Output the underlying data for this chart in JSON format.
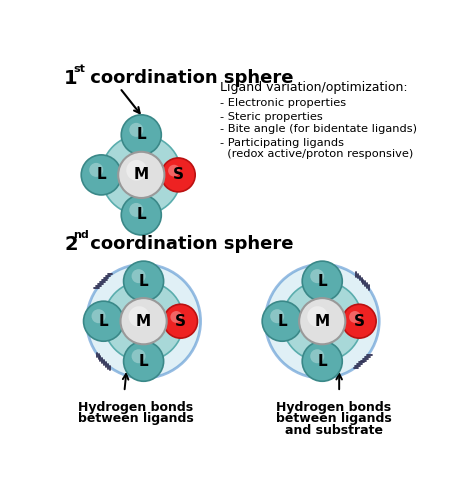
{
  "bg_color": "#ffffff",
  "teal_color": "#5aadad",
  "teal_gradient_edge": "#3a8888",
  "metal_color": "#e0e0e0",
  "metal_edge": "#999999",
  "substrate_color": "#ee2222",
  "substrate_edge": "#bb1111",
  "bond_color": "#111111",
  "hbond_color": "#333355",
  "sphere1_bg_color": "#a8d8d8",
  "sphere1_bg_edge": "#5aadad",
  "sphere2_fill": "#c8e4f0",
  "sphere2_edge": "#4488cc",
  "title1_num": "1",
  "title1_sup": "st",
  "title1_rest": " coordination sphere",
  "title2_num": "2",
  "title2_sup": "nd",
  "title2_rest": " coordination sphere",
  "ligand_header": "Ligand variation/optimization:",
  "ligand_bullets": [
    "- Electronic properties",
    "- Steric properties",
    "- Bite angle (for bidentate ligands)",
    "- Participating ligands",
    "  (redox active/proton responsive)"
  ],
  "hbond_label1": [
    "Hydrogen bonds",
    "between ligands"
  ],
  "hbond_label2": [
    "Hydrogen bonds",
    "between ligands",
    "and substrate"
  ]
}
